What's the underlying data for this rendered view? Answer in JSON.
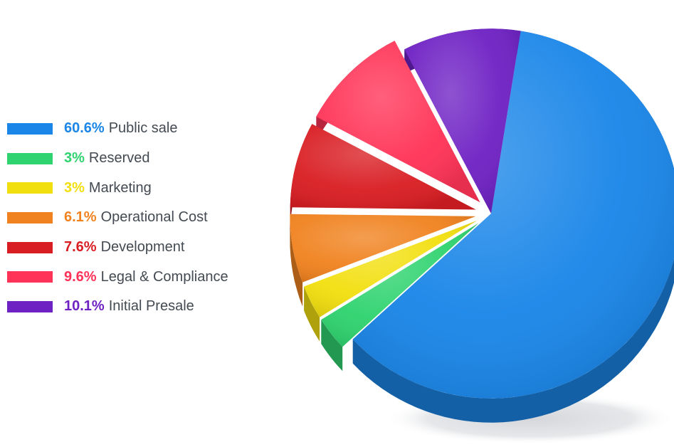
{
  "chart_data": {
    "type": "pie",
    "title": "",
    "slices": [
      {
        "label": "Public sale",
        "value": 60.6,
        "value_text": "60.6%",
        "color": "#1a86e8"
      },
      {
        "label": "Reserved",
        "value": 3,
        "value_text": "3%",
        "color": "#2fd36f"
      },
      {
        "label": "Marketing",
        "value": 3,
        "value_text": "3%",
        "color": "#f2df0f"
      },
      {
        "label": "Operational Cost",
        "value": 6.1,
        "value_text": "6.1%",
        "color": "#f0821f"
      },
      {
        "label": "Development",
        "value": 7.6,
        "value_text": "7.6%",
        "color": "#d91e23"
      },
      {
        "label": "Legal & Compliance",
        "value": 9.6,
        "value_text": "9.6%",
        "color": "#ff3357"
      },
      {
        "label": "Initial Presale",
        "value": 10.1,
        "value_text": "10.1%",
        "color": "#6f22c4"
      }
    ],
    "legend_position": "left",
    "exploded_slices": [
      "Reserved",
      "Marketing",
      "Operational Cost",
      "Development",
      "Legal & Compliance"
    ],
    "style": "3d"
  }
}
